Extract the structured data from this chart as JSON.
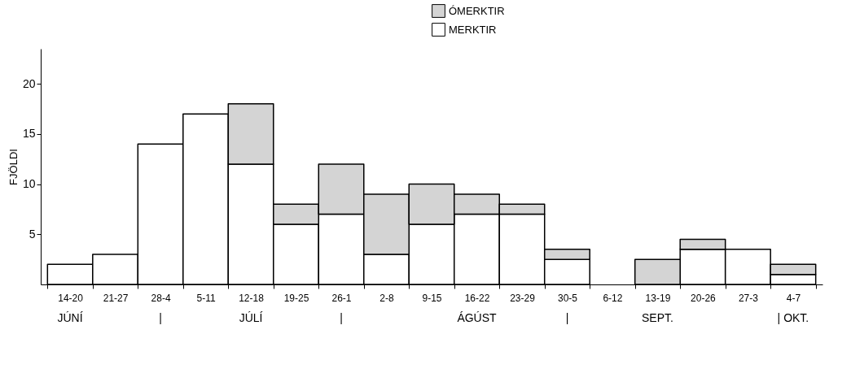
{
  "chart_data": {
    "type": "bar",
    "stacked": true,
    "ylabel": "FJÖLDI",
    "categories": [
      "14-20",
      "21-27",
      "28-4",
      "5-11",
      "12-18",
      "19-25",
      "26-1",
      "2-8",
      "9-15",
      "16-22",
      "23-29",
      "30-5",
      "6-12",
      "13-19",
      "20-26",
      "27-3",
      "4-7"
    ],
    "series": [
      {
        "name": "MERKTIR",
        "color": "#ffffff",
        "values": [
          2,
          3,
          14,
          17,
          12,
          6,
          7,
          3,
          6,
          7,
          7,
          2.5,
          0,
          0,
          3.5,
          3.5,
          1
        ]
      },
      {
        "name": "ÓMERKTIR",
        "color": "#d4d4d4",
        "values": [
          0,
          0,
          0,
          0,
          6,
          2,
          5,
          6,
          4,
          2,
          1,
          1,
          0,
          2.5,
          1,
          0,
          1
        ]
      }
    ],
    "ylim": [
      0,
      23.5
    ],
    "yticks": [
      5,
      10,
      15,
      20
    ],
    "grid": false,
    "legend": "top",
    "annotations": [
      "JÚNÍ",
      "|",
      "JÚLÍ",
      "|",
      "ÁGÚST",
      "|",
      "SEPT.",
      "| OKT."
    ]
  }
}
